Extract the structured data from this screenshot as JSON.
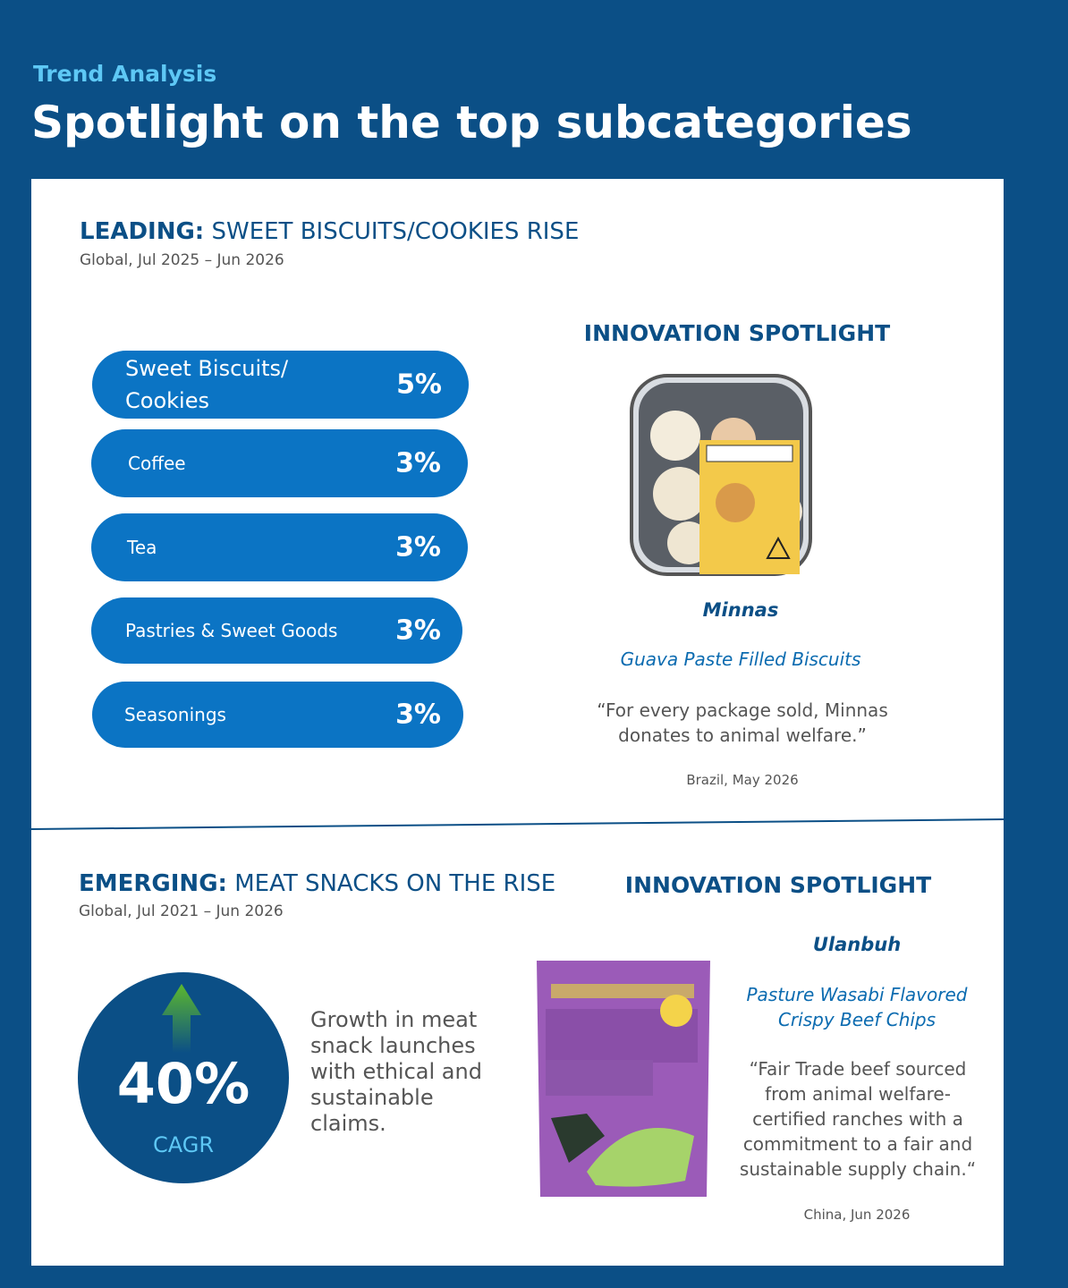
{
  "header": {
    "eyebrow": "Trend Analysis",
    "title": "Spotlight on the top subcategories"
  },
  "leading": {
    "label": "LEADING:",
    "headline": "SWEET BISCUITS/COOKIES RISE",
    "subtitle": "Global, Jul 2025 – Jun 2026",
    "items": [
      {
        "name": "Sweet Biscuits/ Cookies",
        "share": "5%"
      },
      {
        "name": "Coffee",
        "share": "3%"
      },
      {
        "name": "Tea",
        "share": "3%"
      },
      {
        "name": "Pastries & Sweet Goods",
        "share": "3%"
      },
      {
        "name": "Seasonings",
        "share": "3%"
      }
    ],
    "spotlight": {
      "title": "INNOVATION SPOTLIGHT",
      "brand": "Minnas",
      "product": "Guava Paste Filled Biscuits",
      "quote": "“For every package sold, Minnas donates to animal welfare.”",
      "location": "Brazil, May 2026"
    }
  },
  "emerging": {
    "label": "EMERGING:",
    "headline": "MEAT SNACKS ON THE RISE",
    "subtitle": "Global, Jul 2021 – Jun 2026",
    "stat": "40%",
    "stat_label": "CAGR",
    "description": "Growth in meat snack launches with ethical and sustainable claims.",
    "spotlight": {
      "title": "INNOVATION SPOTLIGHT",
      "brand": "Ulanbuh",
      "product": "Pasture Wasabi Flavored Crispy Beef Chips",
      "quote": "“Fair Trade beef sourced from animal welfare-certified ranches with a commitment to a fair and sustainable supply chain.“",
      "location": "China, Jun 2026"
    }
  }
}
